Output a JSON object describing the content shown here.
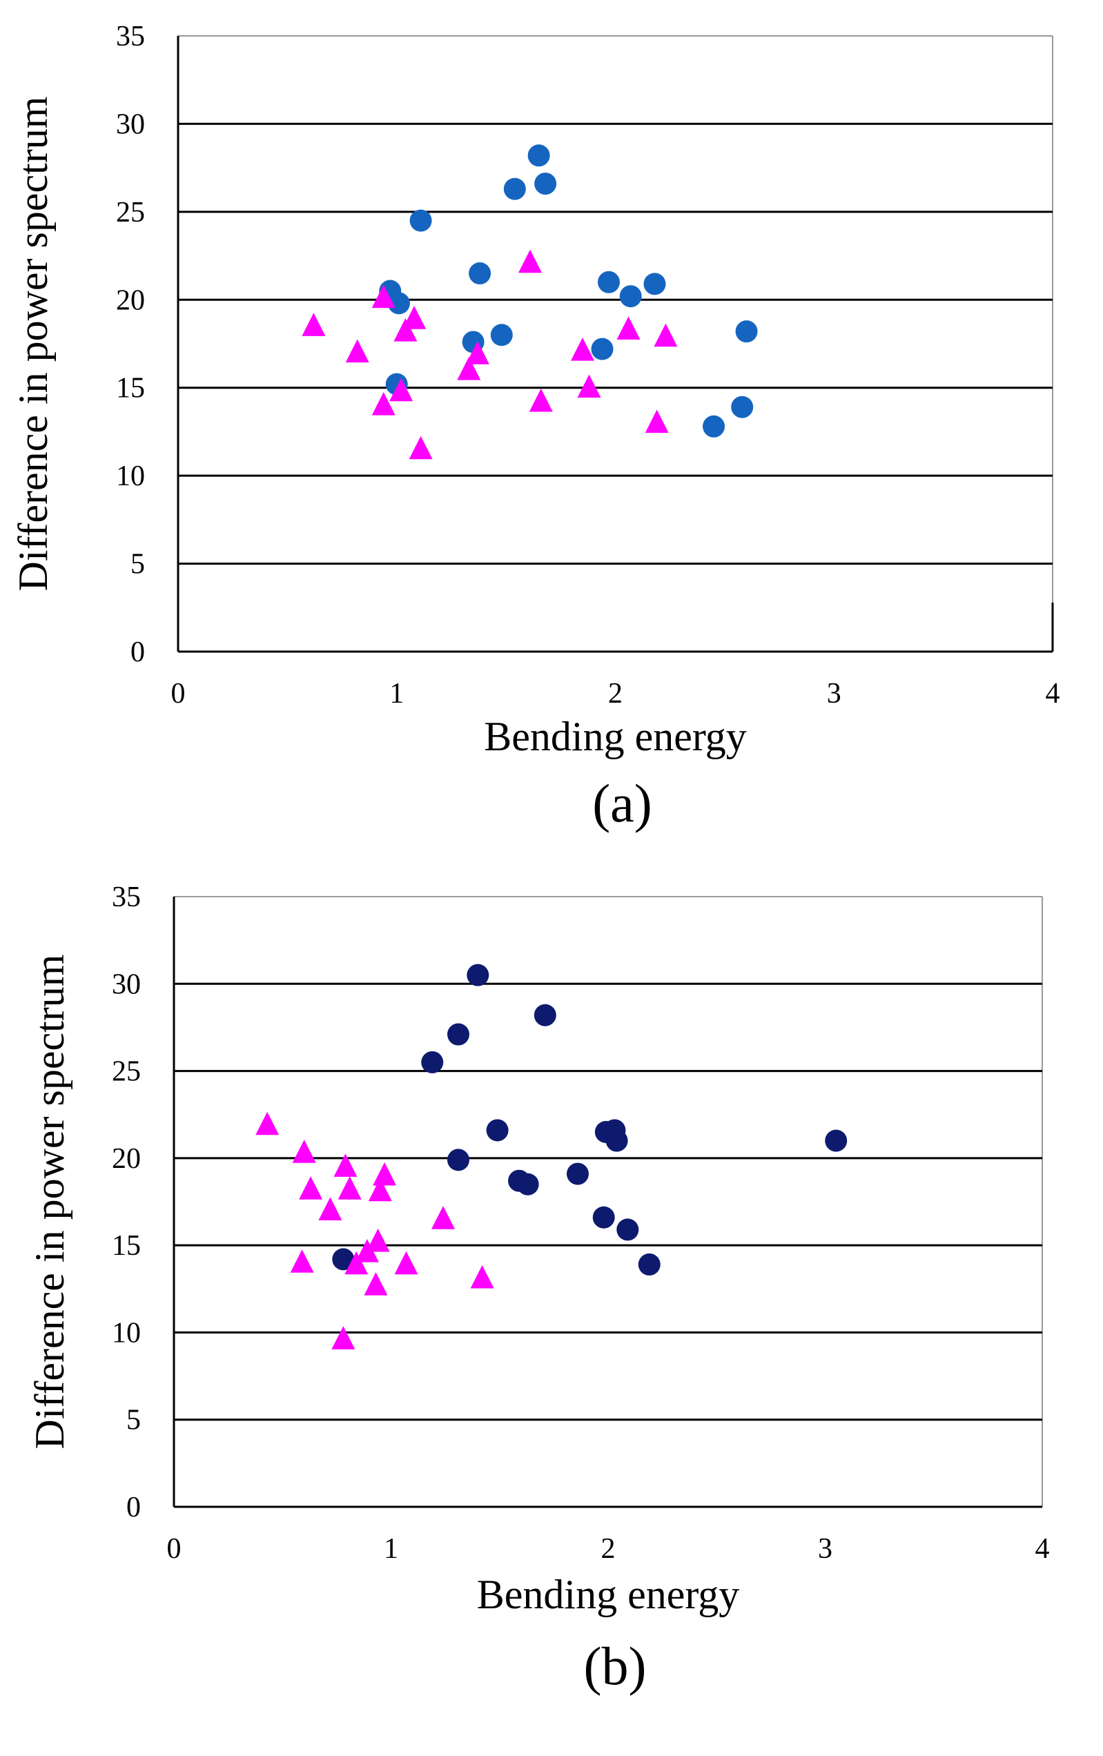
{
  "chart_data": [
    {
      "type": "scatter",
      "panel_label": "(a)",
      "xlabel": "Bending energy",
      "ylabel": "Difference in power spectrum",
      "xlim": [
        0,
        4
      ],
      "ylim": [
        0,
        35
      ],
      "xticks": [
        "0",
        "1",
        "2",
        "3",
        "4"
      ],
      "yticks": [
        "0",
        "5",
        "10",
        "15",
        "20",
        "25",
        "30",
        "35"
      ],
      "grid": "horizontal",
      "series": [
        {
          "name": "circles",
          "marker": "circle",
          "color": "#1565C0",
          "points": [
            [
              1.65,
              28.2
            ],
            [
              1.68,
              26.6
            ],
            [
              1.54,
              26.3
            ],
            [
              1.11,
              24.5
            ],
            [
              1.38,
              21.5
            ],
            [
              0.97,
              20.5
            ],
            [
              1.01,
              19.8
            ],
            [
              1.97,
              21.0
            ],
            [
              2.18,
              20.9
            ],
            [
              2.07,
              20.2
            ],
            [
              2.6,
              18.2
            ],
            [
              1.48,
              18.0
            ],
            [
              1.35,
              17.6
            ],
            [
              1.94,
              17.2
            ],
            [
              1.0,
              15.2
            ],
            [
              2.58,
              13.9
            ],
            [
              2.45,
              12.8
            ]
          ]
        },
        {
          "name": "triangles",
          "marker": "triangle",
          "color": "#FF00FF",
          "points": [
            [
              1.61,
              22.1
            ],
            [
              0.94,
              20.1
            ],
            [
              0.62,
              18.5
            ],
            [
              1.08,
              18.9
            ],
            [
              1.04,
              18.2
            ],
            [
              2.06,
              18.3
            ],
            [
              2.23,
              17.9
            ],
            [
              0.82,
              17.0
            ],
            [
              1.37,
              16.9
            ],
            [
              1.85,
              17.1
            ],
            [
              1.33,
              16.0
            ],
            [
              1.02,
              14.8
            ],
            [
              0.94,
              14.0
            ],
            [
              1.88,
              15.0
            ],
            [
              1.66,
              14.2
            ],
            [
              2.19,
              13.0
            ],
            [
              1.11,
              11.5
            ]
          ]
        }
      ]
    },
    {
      "type": "scatter",
      "panel_label": "(b)",
      "xlabel": "Bending energy",
      "ylabel": "Difference in power spectrum",
      "xlim": [
        0,
        4
      ],
      "ylim": [
        0,
        35
      ],
      "xticks": [
        "0",
        "1",
        "2",
        "3",
        "4"
      ],
      "yticks": [
        "0",
        "5",
        "10",
        "15",
        "20",
        "25",
        "30",
        "35"
      ],
      "grid": "horizontal",
      "series": [
        {
          "name": "circles",
          "marker": "circle",
          "color": "#0D1A6E",
          "points": [
            [
              1.4,
              30.5
            ],
            [
              1.71,
              28.2
            ],
            [
              1.31,
              27.1
            ],
            [
              1.19,
              25.5
            ],
            [
              1.49,
              21.6
            ],
            [
              1.99,
              21.5
            ],
            [
              2.03,
              21.6
            ],
            [
              2.04,
              21.0
            ],
            [
              3.05,
              21.0
            ],
            [
              1.31,
              19.9
            ],
            [
              1.86,
              19.1
            ],
            [
              1.59,
              18.7
            ],
            [
              1.63,
              18.5
            ],
            [
              1.98,
              16.6
            ],
            [
              2.09,
              15.9
            ],
            [
              2.19,
              13.9
            ],
            [
              0.78,
              14.2
            ]
          ]
        },
        {
          "name": "triangles",
          "marker": "triangle",
          "color": "#FF00FF",
          "points": [
            [
              0.43,
              21.9
            ],
            [
              0.6,
              20.3
            ],
            [
              0.79,
              19.5
            ],
            [
              0.97,
              19.0
            ],
            [
              0.63,
              18.2
            ],
            [
              0.81,
              18.2
            ],
            [
              0.95,
              18.1
            ],
            [
              0.72,
              17.0
            ],
            [
              1.24,
              16.5
            ],
            [
              0.94,
              15.2
            ],
            [
              0.89,
              14.6
            ],
            [
              0.59,
              14.0
            ],
            [
              0.84,
              13.9
            ],
            [
              1.07,
              13.9
            ],
            [
              0.93,
              12.7
            ],
            [
              1.42,
              13.1
            ],
            [
              0.78,
              9.6
            ]
          ]
        }
      ]
    }
  ]
}
